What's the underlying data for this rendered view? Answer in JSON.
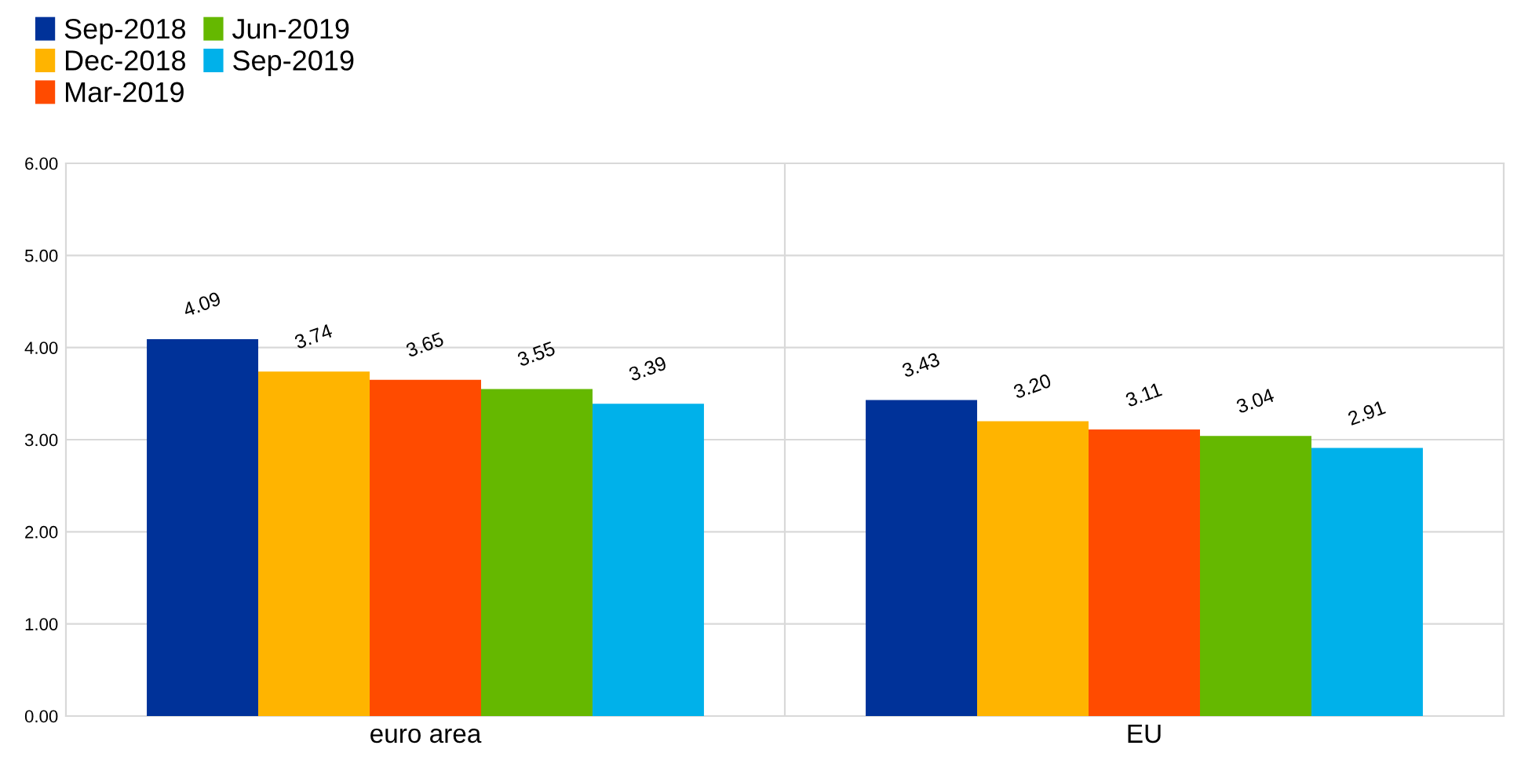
{
  "chart_data": {
    "type": "bar",
    "categories": [
      "euro area",
      "EU"
    ],
    "series": [
      {
        "name": "Sep-2018",
        "color": "#003299",
        "values": [
          4.09,
          3.43
        ],
        "value_labels": [
          "4.09",
          "3.43"
        ]
      },
      {
        "name": "Dec-2018",
        "color": "#ffb400",
        "values": [
          3.74,
          3.2
        ],
        "value_labels": [
          "3.74",
          "3.20"
        ]
      },
      {
        "name": "Mar-2019",
        "color": "#ff4b00",
        "values": [
          3.65,
          3.11
        ],
        "value_labels": [
          "3.65",
          "3.11"
        ]
      },
      {
        "name": "Jun-2019",
        "color": "#65b800",
        "values": [
          3.55,
          3.04
        ],
        "value_labels": [
          "3.55",
          "3.04"
        ]
      },
      {
        "name": "Sep-2019",
        "color": "#00b1ea",
        "values": [
          3.39,
          2.91
        ],
        "value_labels": [
          "3.39",
          "2.91"
        ]
      }
    ],
    "ylim": [
      0,
      6
    ],
    "yticks": [
      {
        "value": 0,
        "label": "0.00"
      },
      {
        "value": 1,
        "label": "1.00"
      },
      {
        "value": 2,
        "label": "2.00"
      },
      {
        "value": 3,
        "label": "3.00"
      },
      {
        "value": 4,
        "label": "4.00"
      },
      {
        "value": 5,
        "label": "5.00"
      },
      {
        "value": 6,
        "label": "6.00"
      }
    ],
    "grid": true,
    "legend": "top left"
  }
}
